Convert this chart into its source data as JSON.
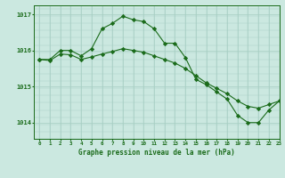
{
  "bg_color": "#cbe8e0",
  "grid_color": "#a8cfc4",
  "line_color": "#1a6b1a",
  "marker_color": "#1a6b1a",
  "xlabel": "Graphe pression niveau de la mer (hPa)",
  "xlim": [
    -0.5,
    23
  ],
  "ylim": [
    1013.55,
    1017.25
  ],
  "yticks": [
    1014,
    1015,
    1016,
    1017
  ],
  "ytick_labels": [
    "1014",
    "1015",
    "1016",
    "1017"
  ],
  "xticks": [
    0,
    1,
    2,
    3,
    4,
    5,
    6,
    7,
    8,
    9,
    10,
    11,
    12,
    13,
    14,
    15,
    16,
    17,
    18,
    19,
    20,
    21,
    22,
    23
  ],
  "series_wavy_x": [
    0,
    1,
    2,
    3,
    4,
    5,
    6,
    7,
    8,
    9,
    10,
    11,
    12,
    13,
    14,
    15,
    16,
    17,
    18,
    19,
    20,
    21,
    22,
    23
  ],
  "series_wavy_y": [
    1015.75,
    1015.75,
    1016.0,
    1016.0,
    1015.85,
    1016.05,
    1016.6,
    1016.75,
    1016.95,
    1016.85,
    1016.8,
    1016.6,
    1016.2,
    1016.2,
    1015.8,
    1015.2,
    1015.05,
    1014.85,
    1014.65,
    1014.2,
    1014.0,
    1014.0,
    1014.35,
    1014.6
  ],
  "series_diag_x": [
    0,
    1,
    2,
    3,
    4,
    5,
    6,
    7,
    8,
    9,
    10,
    11,
    12,
    13,
    14,
    15,
    16,
    17,
    18,
    19,
    20,
    21,
    22,
    23
  ],
  "series_diag_y": [
    1015.75,
    1015.72,
    1015.9,
    1015.88,
    1015.75,
    1015.82,
    1015.9,
    1015.97,
    1016.05,
    1016.0,
    1015.95,
    1015.85,
    1015.75,
    1015.65,
    1015.5,
    1015.3,
    1015.1,
    1014.95,
    1014.8,
    1014.6,
    1014.45,
    1014.4,
    1014.5,
    1014.6
  ]
}
